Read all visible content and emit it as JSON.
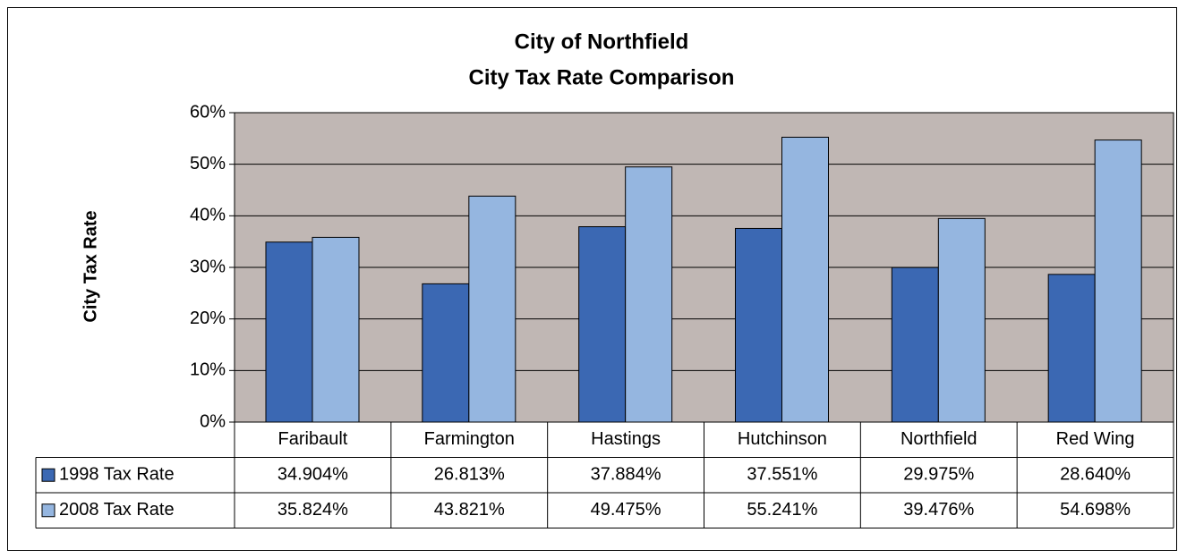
{
  "chart_data": {
    "type": "bar",
    "title": "City of Northfield",
    "subtitle": "City Tax Rate Comparison",
    "y_label": "City Tax Rate",
    "categories": [
      "Faribault",
      "Farmington",
      "Hastings",
      "Hutchinson",
      "Northfield",
      "Red Wing"
    ],
    "series": [
      {
        "name": "1998 Tax Rate",
        "color": "#3b68b3",
        "values": [
          34.904,
          26.813,
          37.884,
          37.551,
          29.975,
          28.64
        ],
        "value_labels": [
          "34.904%",
          "26.813%",
          "37.884%",
          "37.551%",
          "29.975%",
          "28.640%"
        ]
      },
      {
        "name": "2008 Tax Rate",
        "color": "#95b6e0",
        "values": [
          35.824,
          43.821,
          49.475,
          55.241,
          39.476,
          54.698
        ],
        "value_labels": [
          "35.824%",
          "43.821%",
          "49.475%",
          "55.241%",
          "39.476%",
          "54.698%"
        ]
      }
    ],
    "ylim": [
      0,
      60
    ],
    "yticks": [
      {
        "value": 0,
        "label": "0%"
      },
      {
        "value": 10,
        "label": "10%"
      },
      {
        "value": 20,
        "label": "20%"
      },
      {
        "value": 30,
        "label": "30%"
      },
      {
        "value": 40,
        "label": "40%"
      },
      {
        "value": 50,
        "label": "50%"
      },
      {
        "value": 60,
        "label": "60%"
      }
    ],
    "grid": true,
    "plot_background": "#c0b7b4"
  }
}
